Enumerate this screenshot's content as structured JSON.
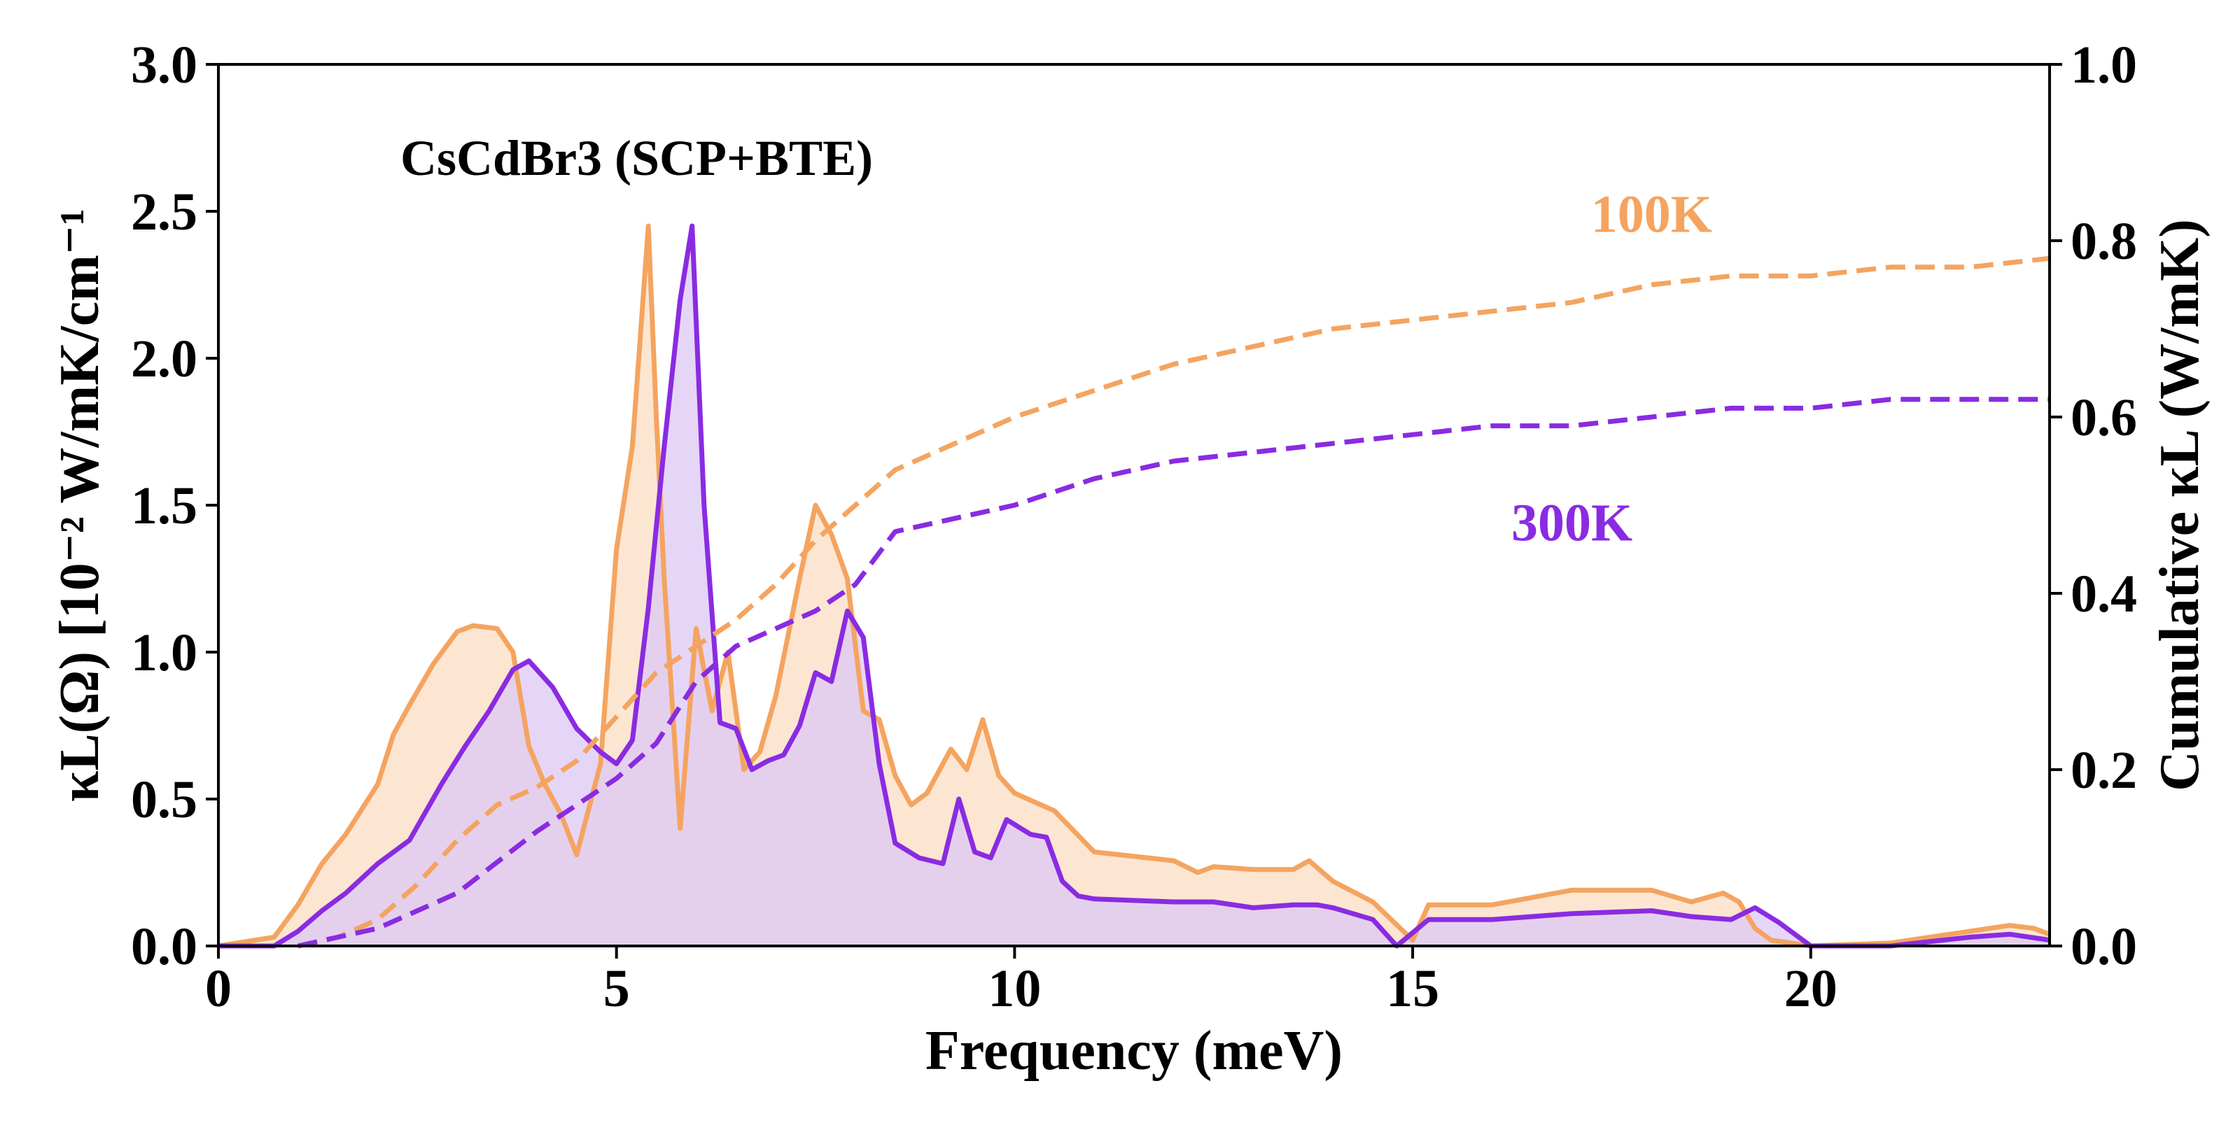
{
  "chart_data": {
    "type": "area",
    "title": "CsCdBr3 (SCP+BTE)",
    "xlabel": "Frequency (meV)",
    "ylabel_left": "κL(Ω) [10⁻² W/mK/cm⁻¹",
    "ylabel_right": "Cumulative κL (W/mK)",
    "xlim": [
      0,
      23
    ],
    "ylim_left": [
      0,
      3.0
    ],
    "ylim_right": [
      0,
      1.0
    ],
    "x_ticks": [
      "0",
      "5",
      "10",
      "15",
      "20"
    ],
    "y_left_ticks": [
      "0.0",
      "0.5",
      "1.0",
      "1.5",
      "2.0",
      "2.5",
      "3.0"
    ],
    "y_right_ticks": [
      "0.0",
      "0.2",
      "0.4",
      "0.6",
      "0.8",
      "1.0"
    ],
    "grid": false,
    "colors": {
      "100K": "#F4A460",
      "300K": "#8A2BE2",
      "fill_100K": "#FCE6D2",
      "fill_300K": "#DCC8F5",
      "fill_overlap": "#E3BFD0"
    },
    "series": [
      {
        "name": "100K",
        "axis": "left",
        "style": "solid-filled",
        "x": [
          0,
          0.7,
          1.0,
          1.3,
          1.6,
          2.0,
          2.2,
          2.4,
          2.7,
          3.0,
          3.2,
          3.5,
          3.7,
          3.9,
          4.1,
          4.3,
          4.5,
          4.8,
          5.0,
          5.2,
          5.4,
          5.5,
          5.6,
          5.8,
          6.0,
          6.2,
          6.4,
          6.6,
          6.8,
          7.0,
          7.3,
          7.5,
          7.7,
          7.9,
          8.1,
          8.3,
          8.5,
          8.7,
          8.9,
          9.2,
          9.4,
          9.6,
          9.8,
          10.0,
          10.5,
          11.0,
          12.0,
          12.3,
          12.5,
          13.0,
          13.5,
          13.7,
          14.0,
          14.5,
          15.0,
          15.2,
          16.0,
          17.0,
          18.0,
          18.5,
          18.9,
          19.1,
          19.3,
          19.5,
          20.0,
          21.0,
          22.0,
          22.5,
          22.8,
          23.0
        ],
        "values": [
          0.0,
          0.03,
          0.14,
          0.28,
          0.38,
          0.55,
          0.72,
          0.82,
          0.96,
          1.07,
          1.09,
          1.08,
          1.0,
          0.68,
          0.55,
          0.45,
          0.31,
          0.62,
          1.35,
          1.7,
          2.45,
          1.8,
          1.25,
          0.4,
          1.08,
          0.8,
          1.0,
          0.6,
          0.66,
          0.85,
          1.25,
          1.5,
          1.4,
          1.25,
          0.8,
          0.77,
          0.58,
          0.48,
          0.52,
          0.67,
          0.6,
          0.77,
          0.58,
          0.52,
          0.46,
          0.32,
          0.29,
          0.25,
          0.27,
          0.26,
          0.26,
          0.29,
          0.22,
          0.15,
          0.02,
          0.14,
          0.14,
          0.19,
          0.19,
          0.15,
          0.18,
          0.15,
          0.06,
          0.02,
          0.0,
          0.01,
          0.05,
          0.07,
          0.06,
          0.04
        ]
      },
      {
        "name": "300K",
        "axis": "left",
        "style": "solid-filled",
        "x": [
          0,
          0.7,
          1.0,
          1.3,
          1.6,
          2.0,
          2.4,
          2.8,
          3.1,
          3.4,
          3.7,
          3.9,
          4.2,
          4.5,
          4.8,
          5.0,
          5.2,
          5.4,
          5.6,
          5.8,
          5.95,
          6.1,
          6.3,
          6.5,
          6.7,
          6.9,
          7.1,
          7.3,
          7.5,
          7.7,
          7.9,
          8.1,
          8.3,
          8.5,
          8.8,
          9.1,
          9.3,
          9.5,
          9.7,
          9.9,
          10.2,
          10.4,
          10.6,
          10.8,
          11.0,
          12.0,
          12.5,
          13.0,
          13.5,
          13.8,
          14.0,
          14.5,
          14.8,
          15.2,
          16.0,
          17.0,
          18.0,
          18.5,
          19.0,
          19.3,
          19.6,
          20.0,
          21.0,
          22.0,
          22.5,
          23.0
        ],
        "values": [
          0.0,
          0.0,
          0.05,
          0.12,
          0.18,
          0.28,
          0.36,
          0.55,
          0.68,
          0.8,
          0.94,
          0.97,
          0.88,
          0.74,
          0.66,
          0.62,
          0.7,
          1.15,
          1.7,
          2.2,
          2.45,
          1.5,
          0.76,
          0.74,
          0.6,
          0.63,
          0.65,
          0.75,
          0.93,
          0.9,
          1.14,
          1.05,
          0.62,
          0.35,
          0.3,
          0.28,
          0.5,
          0.32,
          0.3,
          0.43,
          0.38,
          0.37,
          0.22,
          0.17,
          0.16,
          0.15,
          0.15,
          0.13,
          0.14,
          0.14,
          0.13,
          0.09,
          0.0,
          0.09,
          0.09,
          0.11,
          0.12,
          0.1,
          0.09,
          0.13,
          0.08,
          0.0,
          0.0,
          0.03,
          0.04,
          0.02
        ]
      },
      {
        "name": "100K",
        "axis": "right",
        "style": "dashed",
        "x": [
          1.0,
          1.5,
          2.0,
          2.5,
          3.0,
          3.5,
          4.0,
          4.5,
          5.0,
          5.5,
          6.0,
          6.5,
          7.0,
          7.5,
          8.0,
          8.5,
          9.0,
          9.5,
          10.0,
          11.0,
          12.0,
          13.0,
          14.0,
          15.0,
          16.0,
          17.0,
          18.0,
          19.0,
          20.0,
          21.0,
          22.0,
          23.0
        ],
        "values": [
          0.0,
          0.01,
          0.03,
          0.07,
          0.12,
          0.16,
          0.18,
          0.21,
          0.26,
          0.31,
          0.34,
          0.37,
          0.41,
          0.46,
          0.5,
          0.54,
          0.56,
          0.58,
          0.6,
          0.63,
          0.66,
          0.68,
          0.7,
          0.71,
          0.72,
          0.73,
          0.75,
          0.76,
          0.76,
          0.77,
          0.77,
          0.78
        ]
      },
      {
        "name": "300K",
        "axis": "right",
        "style": "dashed",
        "x": [
          1.0,
          2.0,
          3.0,
          4.0,
          5.0,
          5.5,
          6.0,
          6.5,
          7.0,
          7.5,
          8.0,
          8.5,
          9.0,
          10.0,
          11.0,
          12.0,
          13.0,
          14.0,
          15.0,
          16.0,
          17.0,
          18.0,
          19.0,
          20.0,
          21.0,
          22.0,
          23.0
        ],
        "values": [
          0.0,
          0.02,
          0.06,
          0.13,
          0.19,
          0.23,
          0.3,
          0.34,
          0.36,
          0.38,
          0.41,
          0.47,
          0.48,
          0.5,
          0.53,
          0.55,
          0.56,
          0.57,
          0.58,
          0.59,
          0.59,
          0.6,
          0.61,
          0.61,
          0.62,
          0.62,
          0.62
        ]
      }
    ],
    "annotations": [
      {
        "text": "100K",
        "color": "#F4A460",
        "x": 18.0,
        "y_right": 0.81
      },
      {
        "text": "300K",
        "color": "#8A2BE2",
        "x": 17.0,
        "y_right": 0.46
      }
    ]
  }
}
